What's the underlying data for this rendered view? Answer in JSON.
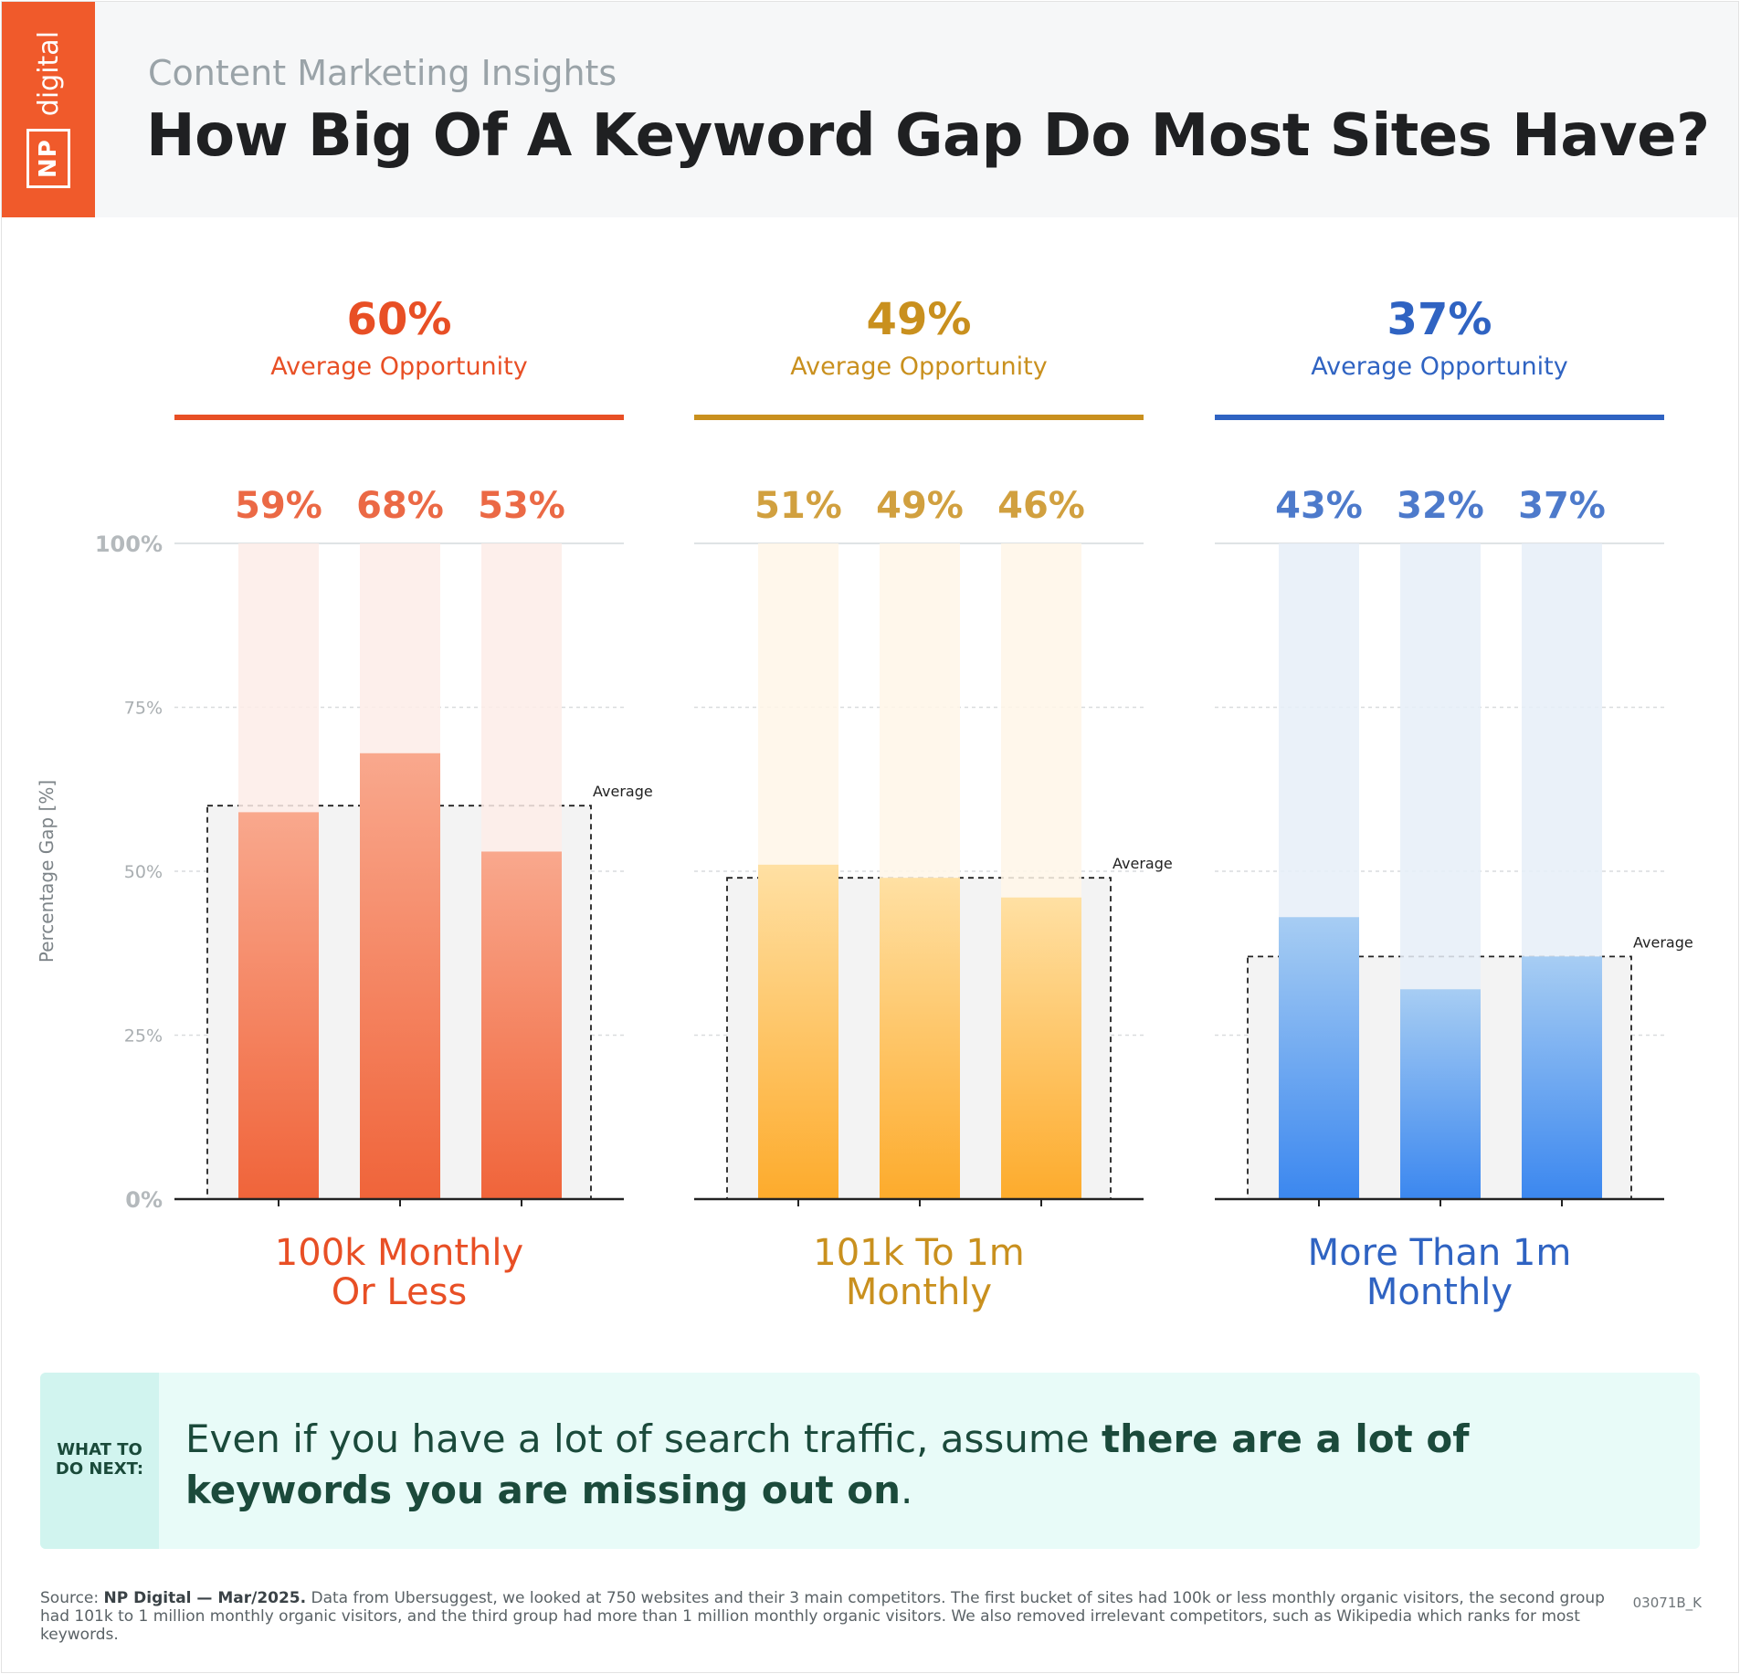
{
  "header": {
    "logo_np": "NP",
    "logo_digital": "digital",
    "subtitle": "Content Marketing Insights",
    "title": "How Big Of A Keyword Gap Do Most Sites Have?"
  },
  "chart_data": {
    "type": "bar",
    "ylabel": "Percentage Gap [%]",
    "ylim": [
      0,
      100
    ],
    "yticks": [
      "0%",
      "25%",
      "50%",
      "75%",
      "100%"
    ],
    "grid": true,
    "average_label": "Average",
    "avg_caption": "Average Opportunity",
    "groups": [
      {
        "name_line1": "100k Monthly",
        "name_line2": "Or Less",
        "average": 60,
        "average_text": "60%",
        "values": [
          59,
          68,
          53
        ],
        "value_labels": [
          "59%",
          "68%",
          "53%"
        ],
        "color": "#e84f25",
        "bar_top": "#f9a88d",
        "bar_bottom": "#f0643a",
        "track": "#fdece7"
      },
      {
        "name_line1": "101k To 1m",
        "name_line2": "Monthly",
        "average": 49,
        "average_text": "49%",
        "values": [
          51,
          49,
          46
        ],
        "value_labels": [
          "51%",
          "49%",
          "46%"
        ],
        "color": "#c9901e",
        "bar_top": "#ffe0a3",
        "bar_bottom": "#fdab2c",
        "track": "#fff6e7"
      },
      {
        "name_line1": "More Than 1m",
        "name_line2": "Monthly",
        "average": 37,
        "average_text": "37%",
        "values": [
          43,
          32,
          37
        ],
        "value_labels": [
          "43%",
          "32%",
          "37%"
        ],
        "color": "#2f63c2",
        "bar_top": "#a7cdf3",
        "bar_bottom": "#3b87ef",
        "track": "#e6eef8"
      }
    ]
  },
  "callout": {
    "tag_line1": "WHAT TO",
    "tag_line2": "DO NEXT:",
    "text_plain": "Even if you have a lot of search traffic, assume ",
    "text_bold": "there are a lot of keywords you are missing out on",
    "text_end": "."
  },
  "footer": {
    "source_label": "Source:",
    "source_bold": "NP Digital — Mar/2025.",
    "source_text": "Data from Ubersuggest, we looked at 750 websites and their 3 main competitors. The first bucket of sites had 100k or less monthly organic visitors, the second group had 101k to 1 million monthly organic visitors, and the third group had more than 1 million monthly organic visitors. We also removed irrelevant competitors, such as Wikipedia which ranks for most keywords.",
    "code": "03071B_K"
  }
}
